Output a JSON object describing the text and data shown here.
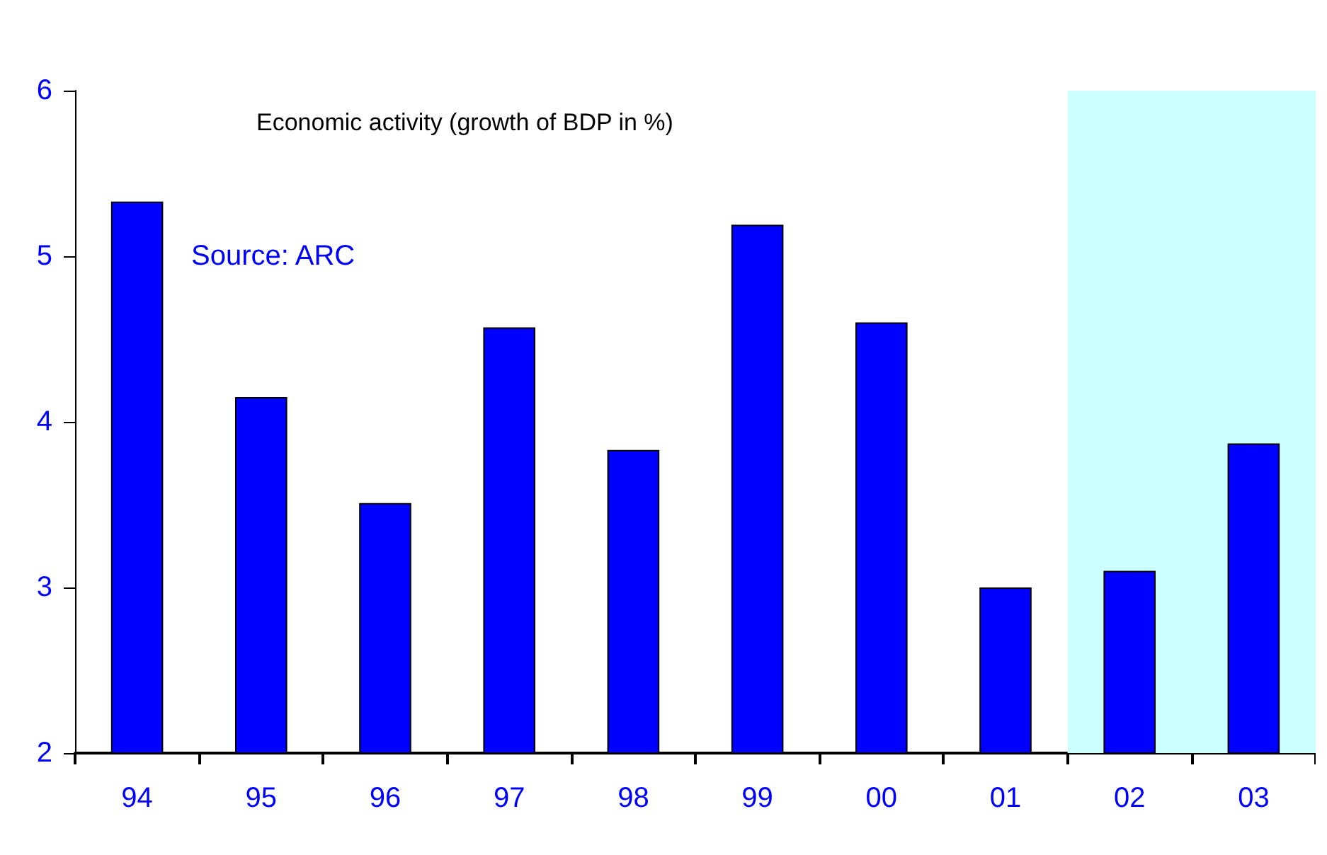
{
  "chart_data": {
    "type": "bar",
    "title": "Economic activity (growth of BDP in %)",
    "annotations": [
      "Source: ARC"
    ],
    "categories": [
      "94",
      "95",
      "96",
      "97",
      "98",
      "99",
      "00",
      "01",
      "02",
      "03"
    ],
    "values": [
      5.33,
      4.15,
      3.51,
      4.57,
      3.83,
      5.19,
      4.6,
      3.0,
      3.1,
      3.87
    ],
    "color": "#0000ff",
    "ylim": [
      2,
      6
    ],
    "yticks": [
      2,
      3,
      4,
      5,
      6
    ],
    "bands": [
      {
        "axis": "x",
        "from": "02",
        "to": "03",
        "color": "#ccffff"
      }
    ]
  }
}
